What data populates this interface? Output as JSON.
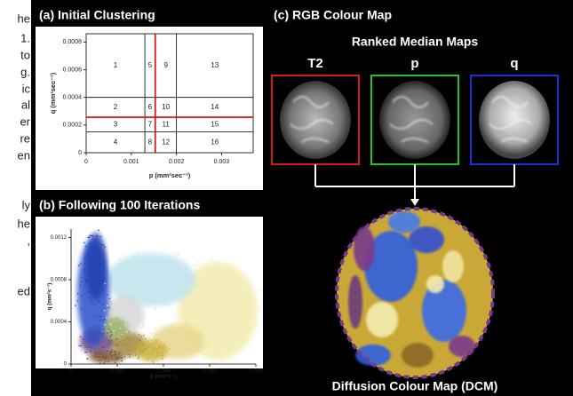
{
  "side_text": [
    "he",
    "1.",
    "to",
    "g.",
    "ic",
    "al",
    "er",
    "re",
    "en",
    "ly",
    "he",
    ",",
    "ed"
  ],
  "panel_a": {
    "title": "(a) Initial Clustering",
    "xlabel": "p (mm²sec⁻¹)",
    "ylabel": "q (mm²sec⁻¹)",
    "xlim": [
      0,
      0.0037
    ],
    "ylim": [
      0,
      0.00086
    ],
    "xticks": [
      0,
      0.001,
      0.002,
      0.003
    ],
    "yticks": [
      0,
      0.0002,
      0.0004,
      0.0006,
      0.0008
    ],
    "p_bounds": [
      {
        "value": 0.0013,
        "color": "#000000"
      },
      {
        "value": 0.00153,
        "color": "#e00000"
      },
      {
        "value": 0.002,
        "color": "#000000"
      }
    ],
    "q_bounds": [
      {
        "value": 0.0004,
        "color": "#000000"
      },
      {
        "value": 0.000256,
        "color": "#e00000"
      },
      {
        "value": 0.00015,
        "color": "#000000"
      }
    ],
    "clusters": [
      1,
      2,
      3,
      4,
      5,
      6,
      7,
      8,
      9,
      10,
      11,
      12,
      13,
      14,
      15,
      16
    ]
  },
  "panel_b": {
    "title": "(b) Following 100 Iterations",
    "xlabel": "p (mm²s⁻¹)",
    "ylabel": "q (mm²s⁻¹)",
    "xlim": [
      0,
      0.008
    ],
    "ylim": [
      0,
      0.00128
    ],
    "xticks": [
      0,
      0.002,
      0.004,
      0.006,
      0.008
    ],
    "yticks": [
      0,
      0.0004,
      0.0008,
      0.0012
    ]
  },
  "panel_c": {
    "title": "(c) RGB Colour Map",
    "subtitle": "Ranked Median Maps",
    "maps": [
      {
        "label": "T2",
        "color": "#d01c1c"
      },
      {
        "label": "p",
        "color": "#22c22a"
      },
      {
        "label": "q",
        "color": "#1c2ed0"
      }
    ],
    "caption": "Diffusion Colour Map (DCM)"
  }
}
